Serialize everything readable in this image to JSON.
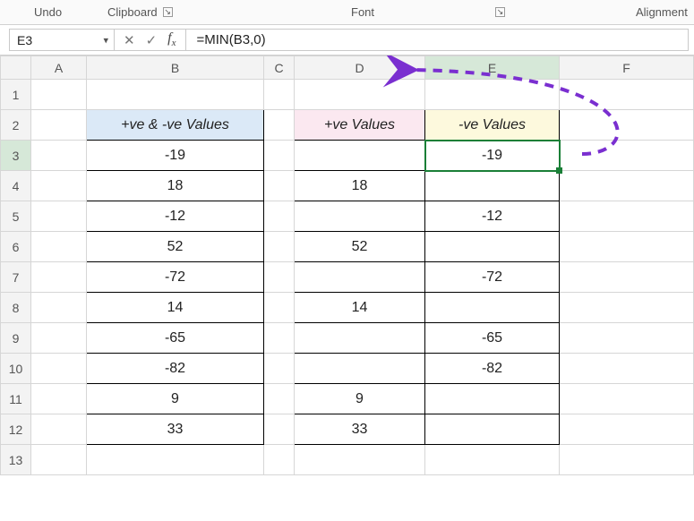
{
  "ribbon": {
    "groups": {
      "undo": "Undo",
      "clipboard": "Clipboard",
      "font": "Font",
      "alignment": "Alignment"
    }
  },
  "formulaBar": {
    "nameBoxValue": "E3",
    "formula": "=MIN(B3,0)"
  },
  "colors": {
    "selectionBorder": "#1a7f37",
    "arrow": "#7a2fd0",
    "headerBlue": "#dbe9f7",
    "headerPink": "#fbe8f0",
    "headerYellow": "#fdf9dd"
  },
  "columns": [
    "A",
    "B",
    "C",
    "D",
    "E",
    "F"
  ],
  "rowCount": 13,
  "headers": {
    "B": "+ve & -ve Values",
    "D": "+ve Values",
    "E": "-ve Values"
  },
  "data": {
    "B": [
      "-19",
      "18",
      "-12",
      "52",
      "-72",
      "14",
      "-65",
      "-82",
      "9",
      "33"
    ],
    "D": [
      "",
      "18",
      "",
      "52",
      "",
      "14",
      "",
      "",
      "9",
      "33"
    ],
    "E": [
      "-19",
      "",
      "-12",
      "",
      "-72",
      "",
      "-65",
      "-82",
      "",
      ""
    ]
  },
  "selectedCell": "E3"
}
